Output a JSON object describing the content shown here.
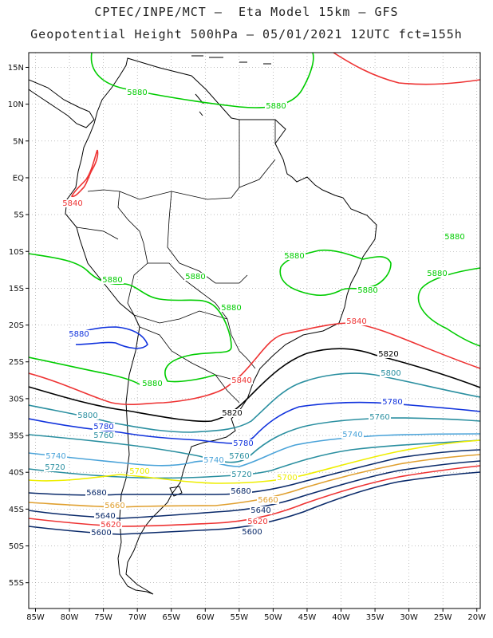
{
  "title_line1": "CPTEC/INPE/MCT –  Eta Model 15km – GFS",
  "title_line2": "Geopotential Height 500hPa – 05/01/2021 12UTC fct=155h",
  "map": {
    "lon_range": [
      -86,
      -19.5
    ],
    "lat_range": [
      -58.5,
      17
    ],
    "lat_ticks": [
      "15N",
      "10N",
      "5N",
      "EQ",
      "5S",
      "10S",
      "15S",
      "20S",
      "25S",
      "30S",
      "35S",
      "40S",
      "45S",
      "50S",
      "55S"
    ],
    "lon_ticks": [
      "85W",
      "80W",
      "75W",
      "70W",
      "65W",
      "60W",
      "55W",
      "50W",
      "45W",
      "40W",
      "35W",
      "30W",
      "25W",
      "20W"
    ],
    "grid": true
  },
  "contours": [
    {
      "value": "5880",
      "color": "#00cc00",
      "labels": [
        "5880",
        "5880",
        "5880",
        "5880",
        "5880",
        "5880",
        "5880",
        "5880",
        "5880",
        "5880"
      ]
    },
    {
      "value": "5880",
      "color": "#1133dd",
      "labels": [
        "5880"
      ]
    },
    {
      "value": "5840",
      "color": "#ee3333",
      "labels": [
        "5840",
        "5840",
        "5840"
      ]
    },
    {
      "value": "5820",
      "color": "#000000",
      "labels": [
        "5820",
        "5820"
      ]
    },
    {
      "value": "5800",
      "color": "#2a8fa0",
      "labels": [
        "5800",
        "5800"
      ]
    },
    {
      "value": "5780",
      "color": "#1133dd",
      "labels": [
        "5780",
        "5780",
        "5780"
      ]
    },
    {
      "value": "5760",
      "color": "#2a8fa0",
      "labels": [
        "5760",
        "5760",
        "5760"
      ]
    },
    {
      "value": "5740",
      "color": "#4aa3d9",
      "labels": [
        "5740",
        "5740",
        "5740"
      ]
    },
    {
      "value": "5720",
      "color": "#2a8fa0",
      "labels": [
        "5720",
        "5720"
      ]
    },
    {
      "value": "5700",
      "color": "#eeee00",
      "labels": [
        "5700",
        "5700"
      ]
    },
    {
      "value": "5680",
      "color": "#0a2a6a",
      "labels": [
        "5680",
        "5680"
      ]
    },
    {
      "value": "5660",
      "color": "#e0a030",
      "labels": [
        "5660",
        "5660"
      ]
    },
    {
      "value": "5640",
      "color": "#0a2a6a",
      "labels": [
        "5640",
        "5640"
      ]
    },
    {
      "value": "5620",
      "color": "#ee3333",
      "labels": [
        "5620",
        "5620"
      ]
    },
    {
      "value": "5600",
      "color": "#0a2a6a",
      "labels": [
        "5600",
        "5600"
      ]
    }
  ]
}
